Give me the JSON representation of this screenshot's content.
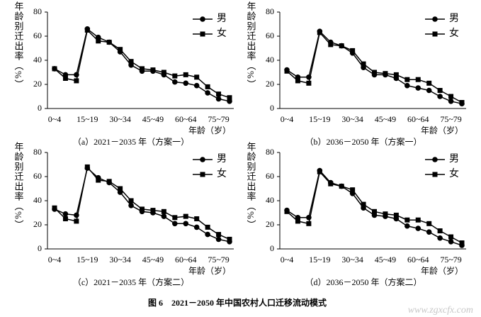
{
  "chart_data": [
    {
      "type": "line",
      "subtitle": "（a）2021－2035 年（方案一）",
      "ylabel": "年龄别迁出率（%）",
      "xlabel": "年龄（岁）",
      "categories": [
        "0~4",
        null,
        null,
        "15~19",
        null,
        null,
        "30~34",
        null,
        null,
        "45~49",
        null,
        null,
        "60~64",
        null,
        null,
        "75~79",
        null
      ],
      "series": [
        {
          "name": "男",
          "color": "#000000",
          "marker": "circle",
          "values": [
            33,
            28,
            28,
            66,
            59,
            55,
            47,
            36,
            31,
            31,
            28,
            22,
            21,
            19,
            13,
            8,
            6
          ]
        },
        {
          "name": "女",
          "color": "#000000",
          "marker": "square",
          "values": [
            33,
            25,
            23,
            65,
            56,
            55,
            49,
            39,
            33,
            32,
            30,
            27,
            28,
            26,
            18,
            12,
            9
          ]
        }
      ],
      "ylim": [
        0,
        80
      ],
      "yticks": [
        0,
        20,
        40,
        60,
        80
      ],
      "legend": "upper right"
    },
    {
      "type": "line",
      "subtitle": "（b）2036－2050 年（方案一）",
      "ylabel": "年龄别迁出率（%）",
      "xlabel": "年龄（岁）",
      "categories": [
        "0~4",
        null,
        null,
        "15~19",
        null,
        null,
        "30~34",
        null,
        null,
        "45~49",
        null,
        null,
        "60~64",
        null,
        null,
        "75~79",
        null
      ],
      "series": [
        {
          "name": "男",
          "color": "#000000",
          "marker": "circle",
          "values": [
            32,
            26,
            26,
            64,
            55,
            52,
            46,
            34,
            28,
            28,
            25,
            19,
            17,
            15,
            10,
            6,
            4
          ]
        },
        {
          "name": "女",
          "color": "#000000",
          "marker": "square",
          "values": [
            31,
            23,
            21,
            63,
            53,
            52,
            48,
            37,
            30,
            29,
            28,
            24,
            24,
            21,
            15,
            10,
            5
          ]
        }
      ],
      "ylim": [
        0,
        80
      ],
      "yticks": [
        0,
        20,
        40,
        60,
        80
      ],
      "legend": "upper right"
    },
    {
      "type": "line",
      "subtitle": "（c）2021－2035 年（方案二）",
      "ylabel": "年龄别迁出率（%）",
      "xlabel": "年龄（岁）",
      "categories": [
        "0~4",
        null,
        null,
        "15~19",
        null,
        null,
        "30~34",
        null,
        null,
        "45~49",
        null,
        null,
        "60~64",
        null,
        null,
        "75~79",
        null
      ],
      "series": [
        {
          "name": "男",
          "color": "#000000",
          "marker": "circle",
          "values": [
            33,
            29,
            28,
            67,
            59,
            55,
            47,
            36,
            31,
            30,
            27,
            21,
            21,
            18,
            12,
            8,
            6
          ]
        },
        {
          "name": "女",
          "color": "#000000",
          "marker": "square",
          "values": [
            34,
            25,
            23,
            68,
            57,
            56,
            50,
            40,
            33,
            32,
            31,
            26,
            27,
            25,
            18,
            12,
            8
          ]
        }
      ],
      "ylim": [
        0,
        80
      ],
      "yticks": [
        0,
        20,
        40,
        60,
        80
      ],
      "legend": "upper right"
    },
    {
      "type": "line",
      "subtitle": "（d）2036－2050 年（方案二）",
      "ylabel": "年龄别迁出率（%）",
      "xlabel": "年龄（岁）",
      "categories": [
        "0~4",
        null,
        null,
        "15~19",
        null,
        null,
        "30~34",
        null,
        null,
        "45~49",
        null,
        null,
        "60~64",
        null,
        null,
        "75~79",
        null
      ],
      "series": [
        {
          "name": "男",
          "color": "#000000",
          "marker": "circle",
          "values": [
            32,
            26,
            26,
            65,
            55,
            52,
            46,
            34,
            28,
            27,
            25,
            19,
            17,
            14,
            9,
            6,
            3
          ]
        },
        {
          "name": "女",
          "color": "#000000",
          "marker": "square",
          "values": [
            31,
            23,
            21,
            64,
            54,
            52,
            49,
            37,
            31,
            29,
            28,
            24,
            24,
            21,
            15,
            10,
            5
          ]
        }
      ],
      "ylim": [
        0,
        80
      ],
      "yticks": [
        0,
        20,
        40,
        60,
        80
      ],
      "legend": "upper right"
    }
  ],
  "figure_caption": "图 6　2021－2050 年中国农村人口迁移流动模式",
  "watermark": "www.zgxcfx.com"
}
